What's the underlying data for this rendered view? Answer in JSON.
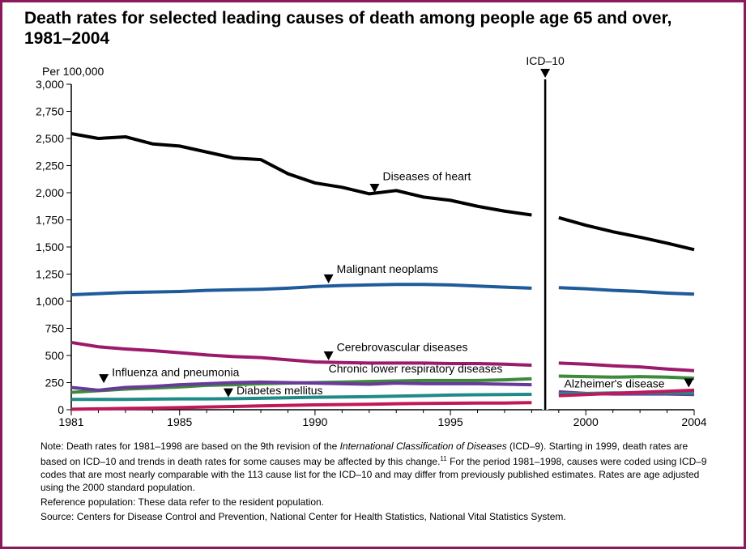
{
  "title": "Death rates for selected leading causes of death among people age 65 and over, 1981–2004",
  "notes": {
    "note_prefix": "Note: Death rates for 1981–1998 are based on the 9th revision of the ",
    "note_italic": "International Classification of Diseases",
    "note_mid": " (ICD–9). Starting in 1999, death rates are based on ICD–10 and trends in death rates for some causes may be affected by this change.",
    "note_sup": "11",
    "note_suffix": " For the period 1981–1998, causes were coded using ICD–9 codes that are most nearly comparable with the 113 cause list for the ICD–10 and may differ from previously published estimates. Rates are age adjusted using the 2000 standard population.",
    "reference": "Reference population: These data refer to the resident population.",
    "source": "Source: Centers for Disease Control and Prevention, National Center for Health Statistics, National Vital Statistics System."
  },
  "chart_data": {
    "type": "line",
    "ylabel": "Per 100,000",
    "ylim": [
      0,
      3000
    ],
    "xlim": [
      1981,
      2004
    ],
    "yticks": [
      0,
      250,
      500,
      750,
      1000,
      1250,
      1500,
      1750,
      2000,
      2250,
      2500,
      2750,
      3000
    ],
    "ytick_labels": [
      "0",
      "250",
      "500",
      "750",
      "1,000",
      "1,250",
      "1,500",
      "1,750",
      "2,000",
      "2,250",
      "2,500",
      "2,750",
      "3,000"
    ],
    "xticks": [
      1981,
      1985,
      1990,
      1995,
      2000,
      2004
    ],
    "xtick_labels": [
      "1981",
      "1985",
      "1990",
      "1995",
      "2000",
      "2004"
    ],
    "break_year": 1998.5,
    "break_label": "ICD–10",
    "grid": false,
    "legend": "none (direct labels)",
    "series": [
      {
        "name": "Diseases of heart",
        "color": "#000000",
        "x": [
          1981,
          1982,
          1983,
          1984,
          1985,
          1986,
          1987,
          1988,
          1989,
          1990,
          1991,
          1992,
          1993,
          1994,
          1995,
          1996,
          1997,
          1998,
          1999,
          2000,
          2001,
          2002,
          2003,
          2004
        ],
        "y": [
          2545,
          2500,
          2515,
          2450,
          2430,
          2375,
          2320,
          2305,
          2175,
          2090,
          2050,
          1990,
          2020,
          1960,
          1930,
          1875,
          1830,
          1795,
          1770,
          1700,
          1640,
          1590,
          1535,
          1475
        ]
      },
      {
        "name": "Malignant neoplams",
        "color": "#1f5b9a",
        "x": [
          1981,
          1982,
          1983,
          1984,
          1985,
          1986,
          1987,
          1988,
          1989,
          1990,
          1991,
          1992,
          1993,
          1994,
          1995,
          1996,
          1997,
          1998,
          1999,
          2000,
          2001,
          2002,
          2003,
          2004
        ],
        "y": [
          1060,
          1070,
          1080,
          1085,
          1090,
          1100,
          1105,
          1110,
          1120,
          1135,
          1145,
          1150,
          1155,
          1155,
          1150,
          1140,
          1130,
          1120,
          1125,
          1115,
          1100,
          1090,
          1075,
          1065
        ]
      },
      {
        "name": "Cerebrovascular diseases",
        "color": "#9c1a6b",
        "x": [
          1981,
          1982,
          1983,
          1984,
          1985,
          1986,
          1987,
          1988,
          1989,
          1990,
          1991,
          1992,
          1993,
          1994,
          1995,
          1996,
          1997,
          1998,
          1999,
          2000,
          2001,
          2002,
          2003,
          2004
        ],
        "y": [
          620,
          580,
          560,
          545,
          525,
          505,
          490,
          480,
          460,
          440,
          435,
          430,
          430,
          430,
          425,
          425,
          420,
          410,
          430,
          420,
          405,
          395,
          375,
          360
        ]
      },
      {
        "name": "Chronic lower respiratory diseases",
        "color": "#3c8a3a",
        "x": [
          1981,
          1982,
          1983,
          1984,
          1985,
          1986,
          1987,
          1988,
          1989,
          1990,
          1991,
          1992,
          1993,
          1994,
          1995,
          1996,
          1997,
          1998,
          1999,
          2000,
          2001,
          2002,
          2003,
          2004
        ],
        "y": [
          160,
          175,
          190,
          200,
          210,
          225,
          230,
          240,
          245,
          250,
          255,
          260,
          265,
          270,
          270,
          270,
          275,
          285,
          310,
          305,
          300,
          305,
          300,
          290
        ]
      },
      {
        "name": "Influenza and pneumonia",
        "color": "#6a3a9a",
        "x": [
          1981,
          1982,
          1983,
          1984,
          1985,
          1986,
          1987,
          1988,
          1989,
          1990,
          1991,
          1992,
          1993,
          1994,
          1995,
          1996,
          1997,
          1998,
          1999,
          2000,
          2001,
          2002,
          2003,
          2004
        ],
        "y": [
          205,
          180,
          205,
          215,
          230,
          240,
          250,
          255,
          250,
          245,
          240,
          235,
          245,
          240,
          240,
          240,
          235,
          230,
          165,
          150,
          145,
          145,
          145,
          140
        ]
      },
      {
        "name": "Diabetes mellitus",
        "color": "#1f8a88",
        "x": [
          1981,
          1982,
          1983,
          1984,
          1985,
          1986,
          1987,
          1988,
          1989,
          1990,
          1991,
          1992,
          1993,
          1994,
          1995,
          1996,
          1997,
          1998,
          1999,
          2000,
          2001,
          2002,
          2003,
          2004
        ],
        "y": [
          95,
          95,
          95,
          98,
          100,
          100,
          102,
          105,
          110,
          115,
          118,
          120,
          125,
          130,
          135,
          138,
          140,
          142,
          150,
          150,
          155,
          155,
          155,
          155
        ]
      },
      {
        "name": "Alzheimer's disease",
        "color": "#c0185a",
        "x": [
          1981,
          1982,
          1983,
          1984,
          1985,
          1986,
          1987,
          1988,
          1989,
          1990,
          1991,
          1992,
          1993,
          1994,
          1995,
          1996,
          1997,
          1998,
          1999,
          2000,
          2001,
          2002,
          2003,
          2004
        ],
        "y": [
          5,
          8,
          12,
          15,
          20,
          25,
          30,
          35,
          40,
          45,
          48,
          50,
          55,
          58,
          60,
          62,
          62,
          65,
          130,
          140,
          150,
          160,
          170,
          180
        ]
      }
    ],
    "annotations": [
      {
        "text": "Diseases of heart",
        "series": "Diseases of heart"
      },
      {
        "text": "Malignant neoplams",
        "series": "Malignant neoplams"
      },
      {
        "text": "Cerebrovascular diseases",
        "series": "Cerebrovascular diseases"
      },
      {
        "text": "Chronic lower respiratory diseases",
        "series": "Chronic lower respiratory diseases"
      },
      {
        "text": "Influenza and pneumonia",
        "series": "Influenza and pneumonia"
      },
      {
        "text": "Diabetes mellitus",
        "series": "Diabetes mellitus"
      },
      {
        "text": "Alzheimer's disease",
        "series": "Alzheimer's disease"
      }
    ]
  }
}
